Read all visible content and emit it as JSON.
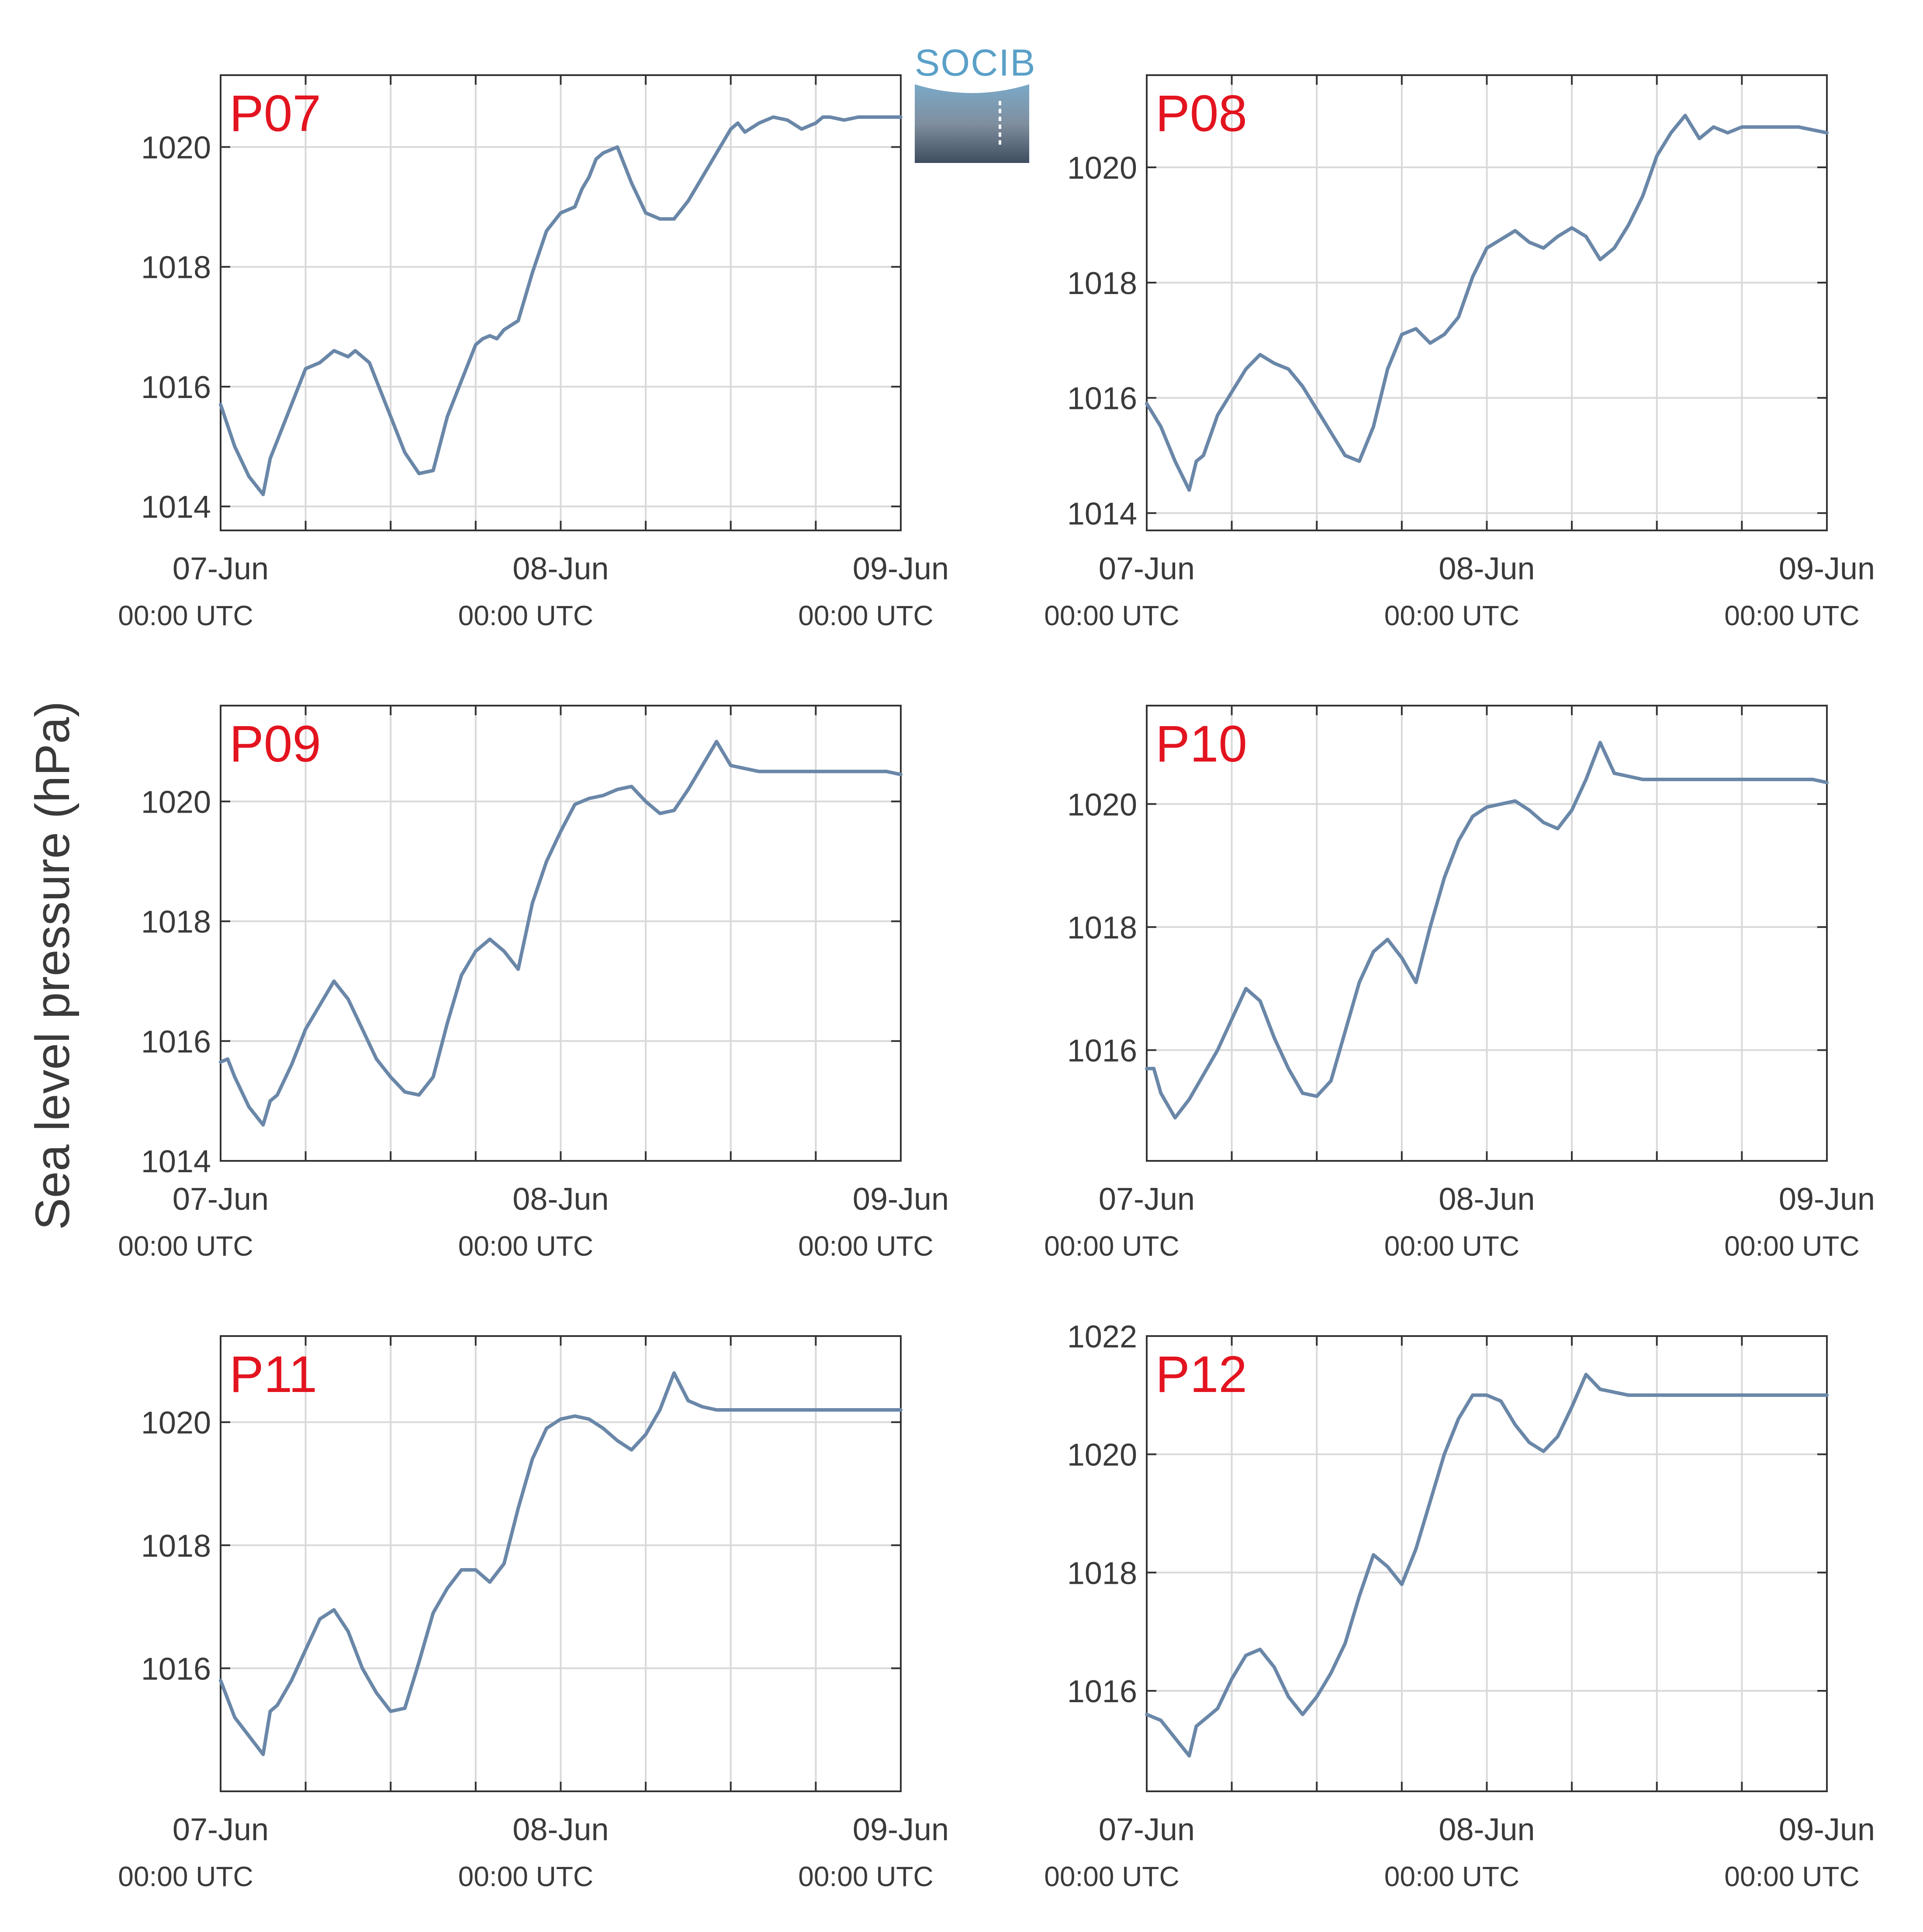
{
  "figure": {
    "ylabel": "Sea level pressure (hPa)",
    "logo_text": "SOCIB",
    "colors": {
      "line": "#6a87a8",
      "panel_label": "#e3141f",
      "grid": "#d9d9d9",
      "axis": "#333333",
      "text": "#3a3a3a"
    }
  },
  "chart_data": [
    {
      "type": "line",
      "title": "P07",
      "xticks": [
        {
          "l1": "07-Jun",
          "l2": "00:00 UTC"
        },
        {
          "l1": "08-Jun",
          "l2": "00:00 UTC"
        },
        {
          "l1": "09-Jun",
          "l2": "00:00 UTC"
        }
      ],
      "xlim": [
        0,
        48
      ],
      "ylim": [
        1013.6,
        1021.2
      ],
      "yticks": [
        1014,
        1016,
        1018,
        1020
      ],
      "series": [
        {
          "x": [
            0,
            1,
            2,
            3,
            3.5,
            4,
            5,
            6,
            7,
            8,
            9,
            9.5,
            10,
            10.5,
            11,
            12,
            13,
            14,
            15,
            16,
            17,
            18,
            18.5,
            19,
            19.5,
            20,
            21,
            22,
            23,
            24,
            25,
            25.5,
            26,
            26.5,
            27,
            28,
            29,
            30,
            31,
            32,
            33,
            34,
            35,
            36,
            36.5,
            37,
            38,
            39,
            40,
            41,
            42,
            42.5,
            43,
            44,
            45,
            46,
            47,
            48
          ],
          "y": [
            1015.7,
            1015,
            1014.5,
            1014.2,
            1014.8,
            1015.1,
            1015.7,
            1016.3,
            1016.4,
            1016.6,
            1016.5,
            1016.6,
            1016.5,
            1016.4,
            1016.1,
            1015.5,
            1014.9,
            1014.55,
            1014.6,
            1015.5,
            1016.1,
            1016.7,
            1016.8,
            1016.85,
            1016.8,
            1016.95,
            1017.1,
            1017.9,
            1018.6,
            1018.9,
            1019.0,
            1019.3,
            1019.5,
            1019.8,
            1019.9,
            1020.0,
            1019.4,
            1018.9,
            1018.8,
            1018.8,
            1019.1,
            1019.5,
            1019.9,
            1020.3,
            1020.4,
            1020.25,
            1020.4,
            1020.5,
            1020.45,
            1020.3,
            1020.4,
            1020.5,
            1020.5,
            1020.45,
            1020.5,
            1020.5,
            1020.5,
            1020.5
          ]
        }
      ]
    },
    {
      "type": "line",
      "title": "P08",
      "xticks": [
        {
          "l1": "07-Jun",
          "l2": "00:00 UTC"
        },
        {
          "l1": "08-Jun",
          "l2": "00:00 UTC"
        },
        {
          "l1": "09-Jun",
          "l2": "00:00 UTC"
        }
      ],
      "xlim": [
        0,
        48
      ],
      "ylim": [
        1013.7,
        1021.6
      ],
      "yticks": [
        1014,
        1016,
        1018,
        1020
      ],
      "series": [
        {
          "x": [
            0,
            1,
            2,
            3,
            3.5,
            4,
            5,
            6,
            7,
            8,
            9,
            10,
            11,
            12,
            13,
            14,
            15,
            16,
            17,
            18,
            19,
            20,
            21,
            22,
            23,
            24,
            25,
            26,
            27,
            28,
            29,
            30,
            31,
            32,
            33,
            34,
            35,
            36,
            37,
            38,
            39,
            40,
            41,
            42,
            43,
            44,
            45,
            46,
            47,
            48
          ],
          "y": [
            1015.9,
            1015.5,
            1014.9,
            1014.4,
            1014.9,
            1015.0,
            1015.7,
            1016.1,
            1016.5,
            1016.75,
            1016.6,
            1016.5,
            1016.2,
            1015.8,
            1015.4,
            1015.0,
            1014.9,
            1015.5,
            1016.5,
            1017.1,
            1017.2,
            1016.95,
            1017.1,
            1017.4,
            1018.1,
            1018.6,
            1018.75,
            1018.9,
            1018.7,
            1018.6,
            1018.8,
            1018.95,
            1018.8,
            1018.4,
            1018.6,
            1019.0,
            1019.5,
            1020.2,
            1020.6,
            1020.9,
            1020.5,
            1020.7,
            1020.6,
            1020.7,
            1020.7,
            1020.7,
            1020.7,
            1020.7,
            1020.65,
            1020.6
          ]
        }
      ]
    },
    {
      "type": "line",
      "title": "P09",
      "xticks": [
        {
          "l1": "07-Jun",
          "l2": "00:00 UTC"
        },
        {
          "l1": "08-Jun",
          "l2": "00:00 UTC"
        },
        {
          "l1": "09-Jun",
          "l2": "00:00 UTC"
        }
      ],
      "xlim": [
        0,
        48
      ],
      "ylim": [
        1014,
        1021.6
      ],
      "yticks": [
        1014,
        1016,
        1018,
        1020
      ],
      "series": [
        {
          "x": [
            0,
            0.5,
            1,
            2,
            3,
            3.5,
            4,
            5,
            6,
            7,
            8,
            9,
            10,
            11,
            12,
            13,
            14,
            15,
            16,
            17,
            18,
            19,
            20,
            21,
            22,
            23,
            24,
            25,
            26,
            27,
            28,
            29,
            30,
            31,
            32,
            33,
            34,
            35,
            36,
            37,
            38,
            39,
            40,
            41,
            42,
            43,
            44,
            45,
            46,
            47,
            48
          ],
          "y": [
            1015.65,
            1015.7,
            1015.4,
            1014.9,
            1014.6,
            1015.0,
            1015.1,
            1015.6,
            1016.2,
            1016.6,
            1017.0,
            1016.7,
            1016.2,
            1015.7,
            1015.4,
            1015.15,
            1015.1,
            1015.4,
            1016.3,
            1017.1,
            1017.5,
            1017.7,
            1017.5,
            1017.2,
            1018.3,
            1019.0,
            1019.5,
            1019.95,
            1020.05,
            1020.1,
            1020.2,
            1020.25,
            1020.0,
            1019.8,
            1019.85,
            1020.2,
            1020.6,
            1021.0,
            1020.6,
            1020.55,
            1020.5,
            1020.5,
            1020.5,
            1020.5,
            1020.5,
            1020.5,
            1020.5,
            1020.5,
            1020.5,
            1020.5,
            1020.45
          ]
        }
      ]
    },
    {
      "type": "line",
      "title": "P10",
      "xticks": [
        {
          "l1": "07-Jun",
          "l2": "00:00 UTC"
        },
        {
          "l1": "08-Jun",
          "l2": "00:00 UTC"
        },
        {
          "l1": "09-Jun",
          "l2": "00:00 UTC"
        }
      ],
      "xlim": [
        0,
        48
      ],
      "ylim": [
        1014.2,
        1021.6
      ],
      "yticks": [
        1016,
        1018,
        1020
      ],
      "series": [
        {
          "x": [
            0,
            0.5,
            1,
            2,
            3,
            4,
            5,
            6,
            7,
            8,
            9,
            10,
            11,
            12,
            13,
            14,
            15,
            16,
            17,
            18,
            19,
            20,
            21,
            22,
            23,
            24,
            25,
            26,
            27,
            28,
            29,
            30,
            31,
            32,
            33,
            34,
            35,
            36,
            37,
            38,
            39,
            40,
            41,
            42,
            43,
            44,
            45,
            46,
            47,
            48
          ],
          "y": [
            1015.7,
            1015.7,
            1015.3,
            1014.9,
            1015.2,
            1015.6,
            1016.0,
            1016.5,
            1017.0,
            1016.8,
            1016.2,
            1015.7,
            1015.3,
            1015.25,
            1015.5,
            1016.3,
            1017.1,
            1017.6,
            1017.8,
            1017.5,
            1017.1,
            1018.0,
            1018.8,
            1019.4,
            1019.8,
            1019.95,
            1020.0,
            1020.05,
            1019.9,
            1019.7,
            1019.6,
            1019.9,
            1020.4,
            1021.0,
            1020.5,
            1020.45,
            1020.4,
            1020.4,
            1020.4,
            1020.4,
            1020.4,
            1020.4,
            1020.4,
            1020.4,
            1020.4,
            1020.4,
            1020.4,
            1020.4,
            1020.4,
            1020.35
          ]
        }
      ]
    },
    {
      "type": "line",
      "title": "P11",
      "xticks": [
        {
          "l1": "07-Jun",
          "l2": "00:00 UTC"
        },
        {
          "l1": "08-Jun",
          "l2": "00:00 UTC"
        },
        {
          "l1": "09-Jun",
          "l2": "00:00 UTC"
        }
      ],
      "xlim": [
        0,
        48
      ],
      "ylim": [
        1014.0,
        1021.4
      ],
      "yticks": [
        1016,
        1018,
        1020
      ],
      "series": [
        {
          "x": [
            0,
            1,
            2,
            3,
            3.5,
            4,
            5,
            6,
            7,
            8,
            9,
            10,
            11,
            12,
            13,
            14,
            15,
            16,
            17,
            18,
            19,
            20,
            21,
            22,
            23,
            24,
            25,
            26,
            27,
            28,
            29,
            30,
            31,
            32,
            33,
            34,
            35,
            36,
            37,
            38,
            39,
            40,
            41,
            42,
            43,
            44,
            45,
            46,
            47,
            48
          ],
          "y": [
            1015.8,
            1015.2,
            1014.9,
            1014.6,
            1015.3,
            1015.4,
            1015.8,
            1016.3,
            1016.8,
            1016.95,
            1016.6,
            1016.0,
            1015.6,
            1015.3,
            1015.35,
            1016.1,
            1016.9,
            1017.3,
            1017.6,
            1017.6,
            1017.4,
            1017.7,
            1018.6,
            1019.4,
            1019.9,
            1020.05,
            1020.1,
            1020.05,
            1019.9,
            1019.7,
            1019.55,
            1019.8,
            1020.2,
            1020.8,
            1020.35,
            1020.25,
            1020.2,
            1020.2,
            1020.2,
            1020.2,
            1020.2,
            1020.2,
            1020.2,
            1020.2,
            1020.2,
            1020.2,
            1020.2,
            1020.2,
            1020.2,
            1020.2
          ]
        }
      ]
    },
    {
      "type": "line",
      "title": "P12",
      "xticks": [
        {
          "l1": "07-Jun",
          "l2": "00:00 UTC"
        },
        {
          "l1": "08-Jun",
          "l2": "00:00 UTC"
        },
        {
          "l1": "09-Jun",
          "l2": "00:00 UTC"
        }
      ],
      "xlim": [
        0,
        48
      ],
      "ylim": [
        1014.3,
        1022.0
      ],
      "yticks": [
        1016,
        1018,
        1020,
        1022
      ],
      "series": [
        {
          "x": [
            0,
            1,
            2,
            3,
            3.5,
            4,
            5,
            6,
            7,
            8,
            9,
            10,
            11,
            12,
            13,
            14,
            15,
            16,
            17,
            18,
            19,
            20,
            21,
            22,
            23,
            24,
            25,
            26,
            27,
            28,
            29,
            30,
            31,
            32,
            33,
            34,
            35,
            36,
            37,
            38,
            39,
            40,
            41,
            42,
            43,
            44,
            45,
            46,
            47,
            48
          ],
          "y": [
            1015.6,
            1015.5,
            1015.2,
            1014.9,
            1015.4,
            1015.5,
            1015.7,
            1016.2,
            1016.6,
            1016.7,
            1016.4,
            1015.9,
            1015.6,
            1015.9,
            1016.3,
            1016.8,
            1017.6,
            1018.3,
            1018.1,
            1017.8,
            1018.4,
            1019.2,
            1020.0,
            1020.6,
            1021.0,
            1021.0,
            1020.9,
            1020.5,
            1020.2,
            1020.05,
            1020.3,
            1020.8,
            1021.35,
            1021.1,
            1021.05,
            1021.0,
            1021.0,
            1021.0,
            1021.0,
            1021.0,
            1021.0,
            1021.0,
            1021.0,
            1021.0,
            1021.0,
            1021.0,
            1021.0,
            1021.0,
            1021.0,
            1021.0
          ]
        }
      ]
    }
  ]
}
